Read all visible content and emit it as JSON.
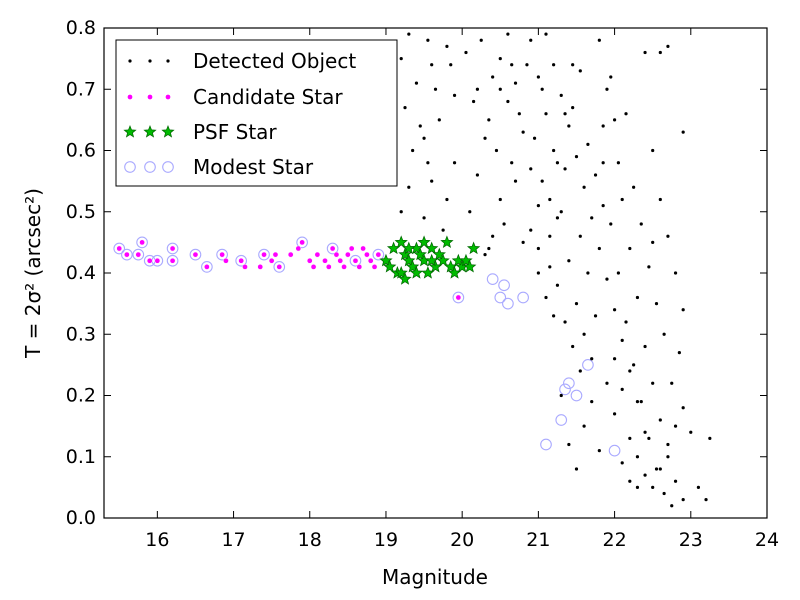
{
  "chart_data": {
    "type": "scatter",
    "xlabel": "Magnitude",
    "ylabel": "T = 2σ² (arcsec²)",
    "xlim": [
      15.3,
      24
    ],
    "ylim": [
      0.0,
      0.8
    ],
    "xticks": [
      "16",
      "17",
      "18",
      "19",
      "20",
      "21",
      "22",
      "23",
      "24"
    ],
    "yticks": [
      "0.0",
      "0.1",
      "0.2",
      "0.3",
      "0.4",
      "0.5",
      "0.6",
      "0.7",
      "0.8"
    ],
    "grid": false,
    "legend_position": "top-left",
    "series": [
      {
        "name": "Detected Object",
        "marker": "dot",
        "color": "#000000",
        "points": [
          [
            19.3,
            0.79
          ],
          [
            19.55,
            0.78
          ],
          [
            19.8,
            0.77
          ],
          [
            19.2,
            0.75
          ],
          [
            19.6,
            0.74
          ],
          [
            19.4,
            0.71
          ],
          [
            19.9,
            0.69
          ],
          [
            19.25,
            0.67
          ],
          [
            19.7,
            0.65
          ],
          [
            19.5,
            0.62
          ],
          [
            19.35,
            0.6
          ],
          [
            19.9,
            0.58
          ],
          [
            19.6,
            0.55
          ],
          [
            19.8,
            0.52
          ],
          [
            19.2,
            0.5
          ],
          [
            19.5,
            0.49
          ],
          [
            19.75,
            0.47
          ],
          [
            20.1,
            0.5
          ],
          [
            20.2,
            0.56
          ],
          [
            20.3,
            0.62
          ],
          [
            20.15,
            0.68
          ],
          [
            20.4,
            0.72
          ],
          [
            20.25,
            0.78
          ],
          [
            20.5,
            0.75
          ],
          [
            20.6,
            0.68
          ],
          [
            20.45,
            0.6
          ],
          [
            20.7,
            0.55
          ],
          [
            20.55,
            0.48
          ],
          [
            20.8,
            0.45
          ],
          [
            20.35,
            0.44
          ],
          [
            20.9,
            0.78
          ],
          [
            21.0,
            0.72
          ],
          [
            21.1,
            0.66
          ],
          [
            21.2,
            0.6
          ],
          [
            21.05,
            0.55
          ],
          [
            21.3,
            0.5
          ],
          [
            21.15,
            0.46
          ],
          [
            21.4,
            0.42
          ],
          [
            21.25,
            0.38
          ],
          [
            21.5,
            0.35
          ],
          [
            21.35,
            0.32
          ],
          [
            21.6,
            0.3
          ],
          [
            21.45,
            0.28
          ],
          [
            21.7,
            0.26
          ],
          [
            21.55,
            0.24
          ],
          [
            21.8,
            0.78
          ],
          [
            21.9,
            0.7
          ],
          [
            22.0,
            0.65
          ],
          [
            21.85,
            0.58
          ],
          [
            22.1,
            0.52
          ],
          [
            21.95,
            0.48
          ],
          [
            22.2,
            0.44
          ],
          [
            22.05,
            0.4
          ],
          [
            22.3,
            0.36
          ],
          [
            22.15,
            0.32
          ],
          [
            22.4,
            0.28
          ],
          [
            22.25,
            0.25
          ],
          [
            22.5,
            0.22
          ],
          [
            22.35,
            0.19
          ],
          [
            22.6,
            0.16
          ],
          [
            22.45,
            0.13
          ],
          [
            22.7,
            0.1
          ],
          [
            22.55,
            0.08
          ],
          [
            22.8,
            0.06
          ],
          [
            22.65,
            0.04
          ],
          [
            22.9,
            0.03
          ],
          [
            22.75,
            0.02
          ],
          [
            23.0,
            0.14
          ],
          [
            23.1,
            0.05
          ],
          [
            23.2,
            0.03
          ],
          [
            22.85,
            0.27
          ],
          [
            22.9,
            0.63
          ],
          [
            22.6,
            0.76
          ],
          [
            22.7,
            0.77
          ],
          [
            23.25,
            0.13
          ],
          [
            21.0,
            0.4
          ],
          [
            21.1,
            0.36
          ],
          [
            21.2,
            0.33
          ],
          [
            21.3,
            0.2
          ],
          [
            21.4,
            0.12
          ],
          [
            21.5,
            0.08
          ],
          [
            21.6,
            0.15
          ],
          [
            21.7,
            0.19
          ],
          [
            21.8,
            0.11
          ],
          [
            21.9,
            0.22
          ],
          [
            22.0,
            0.17
          ],
          [
            22.1,
            0.09
          ],
          [
            22.2,
            0.06
          ],
          [
            22.3,
            0.05
          ],
          [
            22.4,
            0.14
          ],
          [
            20.6,
            0.79
          ],
          [
            20.7,
            0.71
          ],
          [
            20.8,
            0.63
          ],
          [
            20.9,
            0.57
          ],
          [
            21.0,
            0.51
          ],
          [
            21.1,
            0.79
          ],
          [
            21.2,
            0.74
          ],
          [
            21.3,
            0.69
          ],
          [
            21.4,
            0.64
          ],
          [
            21.5,
            0.59
          ],
          [
            21.6,
            0.54
          ],
          [
            21.7,
            0.49
          ],
          [
            21.8,
            0.44
          ],
          [
            21.9,
            0.39
          ],
          [
            22.0,
            0.34
          ],
          [
            22.1,
            0.29
          ],
          [
            22.2,
            0.24
          ],
          [
            22.3,
            0.19
          ],
          [
            22.4,
            0.76
          ],
          [
            22.5,
            0.6
          ],
          [
            22.6,
            0.52
          ],
          [
            22.7,
            0.46
          ],
          [
            22.8,
            0.4
          ],
          [
            22.9,
            0.34
          ],
          [
            22.5,
            0.45
          ],
          [
            20.9,
            0.47
          ],
          [
            21.0,
            0.44
          ],
          [
            21.15,
            0.41
          ],
          [
            21.25,
            0.49
          ],
          [
            21.35,
            0.57
          ],
          [
            21.45,
            0.67
          ],
          [
            21.55,
            0.73
          ],
          [
            21.65,
            0.61
          ],
          [
            21.75,
            0.56
          ],
          [
            21.85,
            0.51
          ],
          [
            20.3,
            0.43
          ],
          [
            20.4,
            0.46
          ],
          [
            20.5,
            0.52
          ],
          [
            20.65,
            0.58
          ],
          [
            20.75,
            0.66
          ],
          [
            20.85,
            0.74
          ],
          [
            20.95,
            0.62
          ],
          [
            21.05,
            0.7
          ],
          [
            21.15,
            0.52
          ],
          [
            21.25,
            0.58
          ],
          [
            21.35,
            0.66
          ],
          [
            21.45,
            0.74
          ],
          [
            21.55,
            0.46
          ],
          [
            21.65,
            0.4
          ],
          [
            21.75,
            0.33
          ],
          [
            21.85,
            0.64
          ],
          [
            21.95,
            0.72
          ],
          [
            22.05,
            0.58
          ],
          [
            22.15,
            0.66
          ],
          [
            22.25,
            0.54
          ],
          [
            22.35,
            0.48
          ],
          [
            22.45,
            0.41
          ],
          [
            22.55,
            0.35
          ],
          [
            22.65,
            0.3
          ],
          [
            22.75,
            0.22
          ],
          [
            19.45,
            0.64
          ],
          [
            19.65,
            0.7
          ],
          [
            19.85,
            0.74
          ],
          [
            19.3,
            0.54
          ],
          [
            19.55,
            0.58
          ],
          [
            20.05,
            0.76
          ],
          [
            20.2,
            0.7
          ],
          [
            20.35,
            0.65
          ],
          [
            20.5,
            0.7
          ],
          [
            20.65,
            0.74
          ],
          [
            22.5,
            0.05
          ],
          [
            22.6,
            0.08
          ],
          [
            22.7,
            0.12
          ],
          [
            22.8,
            0.15
          ],
          [
            22.9,
            0.18
          ],
          [
            22.3,
            0.1
          ],
          [
            22.4,
            0.07
          ],
          [
            22.2,
            0.13
          ],
          [
            22.1,
            0.21
          ],
          [
            22.0,
            0.26
          ]
        ]
      },
      {
        "name": "Candidate Star",
        "marker": "small-circle",
        "color": "#ff00ff",
        "points": [
          [
            15.5,
            0.44
          ],
          [
            15.6,
            0.43
          ],
          [
            15.75,
            0.43
          ],
          [
            15.8,
            0.45
          ],
          [
            15.9,
            0.42
          ],
          [
            16.0,
            0.42
          ],
          [
            16.2,
            0.44
          ],
          [
            16.2,
            0.42
          ],
          [
            16.5,
            0.43
          ],
          [
            16.65,
            0.41
          ],
          [
            16.85,
            0.43
          ],
          [
            16.9,
            0.42
          ],
          [
            17.1,
            0.42
          ],
          [
            17.15,
            0.41
          ],
          [
            17.35,
            0.41
          ],
          [
            17.4,
            0.43
          ],
          [
            17.5,
            0.42
          ],
          [
            17.55,
            0.43
          ],
          [
            17.6,
            0.41
          ],
          [
            17.75,
            0.43
          ],
          [
            17.85,
            0.44
          ],
          [
            17.9,
            0.45
          ],
          [
            18.0,
            0.42
          ],
          [
            18.05,
            0.41
          ],
          [
            18.1,
            0.43
          ],
          [
            18.2,
            0.42
          ],
          [
            18.25,
            0.41
          ],
          [
            18.3,
            0.44
          ],
          [
            18.35,
            0.43
          ],
          [
            18.4,
            0.42
          ],
          [
            18.45,
            0.41
          ],
          [
            18.5,
            0.43
          ],
          [
            18.55,
            0.44
          ],
          [
            18.6,
            0.42
          ],
          [
            18.65,
            0.41
          ],
          [
            18.7,
            0.44
          ],
          [
            18.75,
            0.43
          ],
          [
            18.8,
            0.42
          ],
          [
            18.85,
            0.41
          ],
          [
            18.9,
            0.43
          ],
          [
            19.95,
            0.36
          ]
        ]
      },
      {
        "name": "PSF Star",
        "marker": "star",
        "color": "#00aa00",
        "points": [
          [
            19.0,
            0.42
          ],
          [
            19.05,
            0.41
          ],
          [
            19.1,
            0.44
          ],
          [
            19.15,
            0.4
          ],
          [
            19.2,
            0.45
          ],
          [
            19.25,
            0.43
          ],
          [
            19.3,
            0.42
          ],
          [
            19.35,
            0.41
          ],
          [
            19.4,
            0.44
          ],
          [
            19.45,
            0.43
          ],
          [
            19.5,
            0.42
          ],
          [
            19.55,
            0.4
          ],
          [
            19.6,
            0.44
          ],
          [
            19.65,
            0.41
          ],
          [
            19.7,
            0.43
          ],
          [
            19.75,
            0.42
          ],
          [
            19.8,
            0.45
          ],
          [
            19.85,
            0.41
          ],
          [
            19.9,
            0.4
          ],
          [
            19.95,
            0.42
          ],
          [
            20.0,
            0.41
          ],
          [
            20.05,
            0.42
          ],
          [
            20.1,
            0.41
          ],
          [
            20.15,
            0.44
          ],
          [
            19.2,
            0.4
          ],
          [
            19.3,
            0.44
          ],
          [
            19.4,
            0.4
          ],
          [
            19.5,
            0.45
          ],
          [
            19.6,
            0.42
          ],
          [
            19.25,
            0.39
          ]
        ]
      },
      {
        "name": "Modest Star",
        "marker": "hollow-circle",
        "color": "#aaaaff",
        "points": [
          [
            15.5,
            0.44
          ],
          [
            15.6,
            0.43
          ],
          [
            15.75,
            0.43
          ],
          [
            15.8,
            0.45
          ],
          [
            15.9,
            0.42
          ],
          [
            16.0,
            0.42
          ],
          [
            16.2,
            0.44
          ],
          [
            16.2,
            0.42
          ],
          [
            16.5,
            0.43
          ],
          [
            16.65,
            0.41
          ],
          [
            16.85,
            0.43
          ],
          [
            17.1,
            0.42
          ],
          [
            17.4,
            0.43
          ],
          [
            17.6,
            0.41
          ],
          [
            17.9,
            0.45
          ],
          [
            18.3,
            0.44
          ],
          [
            18.6,
            0.42
          ],
          [
            18.9,
            0.43
          ],
          [
            19.95,
            0.36
          ],
          [
            20.4,
            0.39
          ],
          [
            20.5,
            0.36
          ],
          [
            20.55,
            0.38
          ],
          [
            20.6,
            0.35
          ],
          [
            20.8,
            0.36
          ],
          [
            21.1,
            0.12
          ],
          [
            21.3,
            0.16
          ],
          [
            21.35,
            0.21
          ],
          [
            21.4,
            0.22
          ],
          [
            21.5,
            0.2
          ],
          [
            21.65,
            0.25
          ],
          [
            22.0,
            0.11
          ]
        ]
      }
    ]
  }
}
